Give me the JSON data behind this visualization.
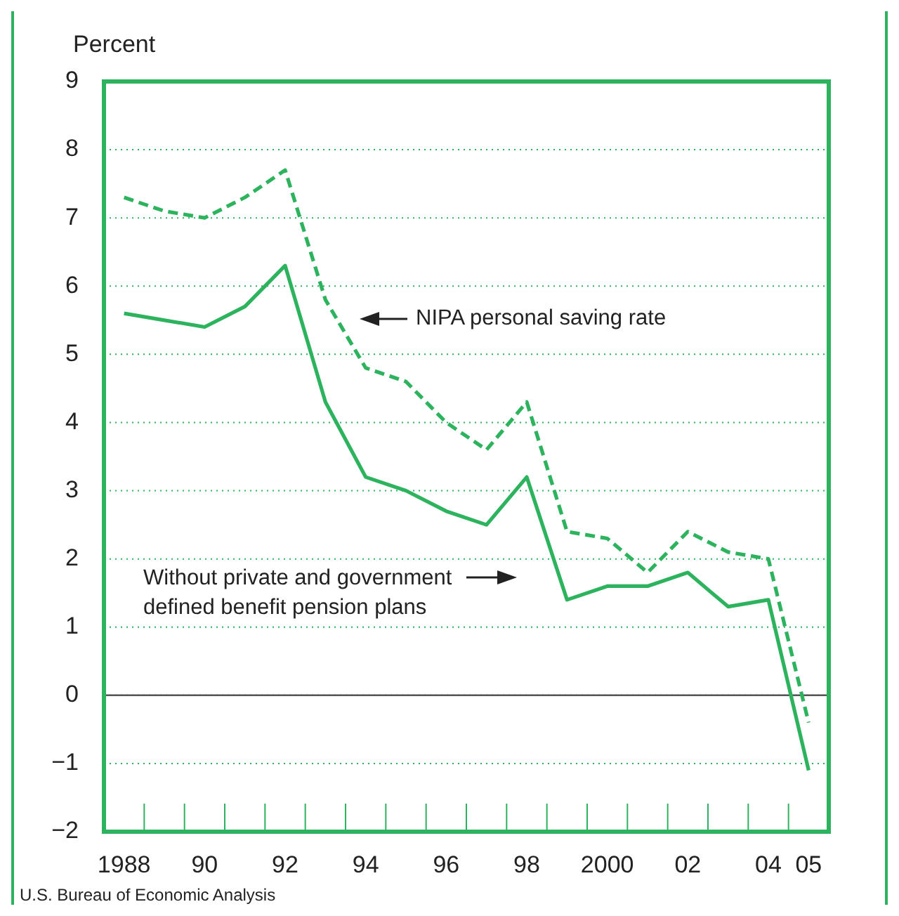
{
  "chart_data": {
    "type": "line",
    "ylabel": "Percent",
    "categories": [
      "1988",
      null,
      "90",
      null,
      "92",
      null,
      "94",
      null,
      "96",
      null,
      "98",
      null,
      "2000",
      null,
      "02",
      null,
      "04",
      "05"
    ],
    "series": [
      {
        "name": "NIPA personal saving rate",
        "color": "#2db35d",
        "line_style": "dashed",
        "values": [
          7.3,
          7.1,
          7.0,
          7.3,
          7.7,
          5.8,
          4.8,
          4.6,
          4.0,
          3.6,
          4.3,
          2.4,
          2.3,
          1.8,
          2.4,
          2.1,
          2.0,
          -0.4
        ]
      },
      {
        "name": "Without private and government defined benefit pension plans",
        "color": "#2db35d",
        "line_style": "solid",
        "values": [
          5.6,
          5.5,
          5.4,
          5.7,
          6.3,
          4.3,
          3.2,
          3.0,
          2.7,
          2.5,
          3.2,
          1.4,
          1.6,
          1.6,
          1.8,
          1.3,
          1.4,
          -1.1
        ]
      }
    ],
    "ylim": [
      -2,
      9
    ],
    "yticks": [
      -2,
      -1,
      0,
      1,
      2,
      3,
      4,
      5,
      6,
      7,
      8,
      9
    ],
    "grid": "y",
    "marker": "none",
    "ref_lines": [
      {
        "axis": "y",
        "value": 0,
        "color": "#555555"
      }
    ],
    "annotations": [
      "U.S. Bureau of Economic Analysis"
    ]
  }
}
